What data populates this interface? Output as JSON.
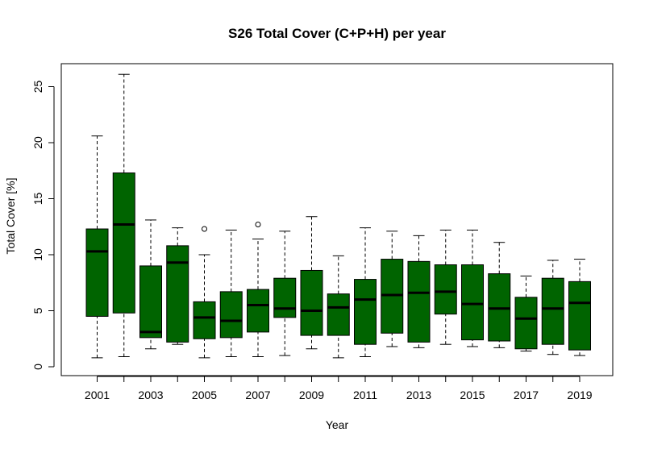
{
  "chart_data": {
    "type": "boxplot",
    "title": "S26 Total Cover (C+P+H) per year",
    "xlabel": "Year",
    "ylabel": "Total Cover [%]",
    "ylim": [
      0,
      26.5
    ],
    "y_ticks": [
      0,
      5,
      10,
      15,
      20,
      25
    ],
    "x_tick_labels": [
      "2001",
      "2003",
      "2005",
      "2007",
      "2009",
      "2011",
      "2013",
      "2015",
      "2017",
      "2019"
    ],
    "box_color": "#006400",
    "grid": false,
    "boxes": [
      {
        "year": "2001",
        "whisker_low": 0.8,
        "q1": 4.5,
        "median": 10.3,
        "q3": 12.3,
        "whisker_high": 20.6,
        "outliers": []
      },
      {
        "year": "2002",
        "whisker_low": 0.9,
        "q1": 4.8,
        "median": 12.7,
        "q3": 17.3,
        "whisker_high": 26.1,
        "outliers": []
      },
      {
        "year": "2003",
        "whisker_low": 1.6,
        "q1": 2.6,
        "median": 3.1,
        "q3": 9.0,
        "whisker_high": 13.1,
        "outliers": []
      },
      {
        "year": "2004",
        "whisker_low": 2.0,
        "q1": 2.2,
        "median": 9.3,
        "q3": 10.8,
        "whisker_high": 12.4,
        "outliers": []
      },
      {
        "year": "2005",
        "whisker_low": 0.8,
        "q1": 2.5,
        "median": 4.4,
        "q3": 5.8,
        "whisker_high": 10.0,
        "outliers": [
          12.3
        ]
      },
      {
        "year": "2006",
        "whisker_low": 0.9,
        "q1": 2.6,
        "median": 4.1,
        "q3": 6.7,
        "whisker_high": 12.2,
        "outliers": []
      },
      {
        "year": "2007",
        "whisker_low": 0.9,
        "q1": 3.1,
        "median": 5.5,
        "q3": 6.9,
        "whisker_high": 11.4,
        "outliers": [
          12.7
        ]
      },
      {
        "year": "2008",
        "whisker_low": 1.0,
        "q1": 4.4,
        "median": 5.2,
        "q3": 7.9,
        "whisker_high": 12.1,
        "outliers": []
      },
      {
        "year": "2009",
        "whisker_low": 1.6,
        "q1": 2.8,
        "median": 5.0,
        "q3": 8.6,
        "whisker_high": 13.4,
        "outliers": []
      },
      {
        "year": "2010",
        "whisker_low": 0.8,
        "q1": 2.8,
        "median": 5.3,
        "q3": 6.5,
        "whisker_high": 9.9,
        "outliers": []
      },
      {
        "year": "2011",
        "whisker_low": 0.9,
        "q1": 2.0,
        "median": 6.0,
        "q3": 7.8,
        "whisker_high": 12.4,
        "outliers": []
      },
      {
        "year": "2012",
        "whisker_low": 1.8,
        "q1": 3.0,
        "median": 6.4,
        "q3": 9.6,
        "whisker_high": 12.1,
        "outliers": []
      },
      {
        "year": "2013",
        "whisker_low": 1.7,
        "q1": 2.2,
        "median": 6.6,
        "q3": 9.4,
        "whisker_high": 11.7,
        "outliers": []
      },
      {
        "year": "2014",
        "whisker_low": 2.0,
        "q1": 4.7,
        "median": 6.7,
        "q3": 9.1,
        "whisker_high": 12.2,
        "outliers": []
      },
      {
        "year": "2015",
        "whisker_low": 1.8,
        "q1": 2.4,
        "median": 5.6,
        "q3": 9.1,
        "whisker_high": 12.2,
        "outliers": []
      },
      {
        "year": "2016",
        "whisker_low": 1.7,
        "q1": 2.3,
        "median": 5.2,
        "q3": 8.3,
        "whisker_high": 11.1,
        "outliers": []
      },
      {
        "year": "2017",
        "whisker_low": 1.4,
        "q1": 1.6,
        "median": 4.3,
        "q3": 6.2,
        "whisker_high": 8.1,
        "outliers": []
      },
      {
        "year": "2018",
        "whisker_low": 1.1,
        "q1": 2.0,
        "median": 5.2,
        "q3": 7.9,
        "whisker_high": 9.5,
        "outliers": []
      },
      {
        "year": "2019",
        "whisker_low": 1.0,
        "q1": 1.5,
        "median": 5.7,
        "q3": 7.6,
        "whisker_high": 9.6,
        "outliers": []
      }
    ]
  }
}
